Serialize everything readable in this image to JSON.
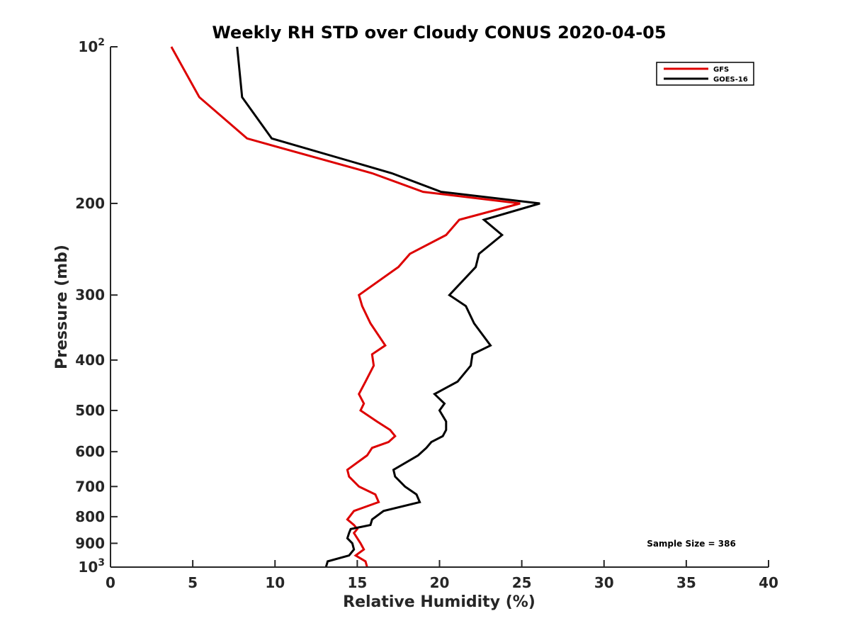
{
  "chart_data": {
    "type": "line",
    "title": "Weekly RH STD over Cloudy CONUS 2020-04-05",
    "xlabel": "Relative Humidity (%)",
    "ylabel": "Pressure (mb)",
    "xlim": [
      0,
      40
    ],
    "ylim": [
      100,
      1000
    ],
    "y_scale": "log",
    "y_reversed": true,
    "x_ticks": [
      "0",
      "5",
      "10",
      "15",
      "20",
      "25",
      "30",
      "35",
      "40"
    ],
    "y_ticks": [
      {
        "value": 100,
        "base": "10",
        "exp": "2"
      },
      {
        "value": 200,
        "label": "200"
      },
      {
        "value": 300,
        "label": "300"
      },
      {
        "value": 400,
        "label": "400"
      },
      {
        "value": 500,
        "label": "500"
      },
      {
        "value": 600,
        "label": "600"
      },
      {
        "value": 700,
        "label": "700"
      },
      {
        "value": 800,
        "label": "800"
      },
      {
        "value": 900,
        "label": "900"
      },
      {
        "value": 1000,
        "base": "10",
        "exp": "3"
      }
    ],
    "legend_position": "top-right",
    "grid": false,
    "annotation": "Sample Size = 386",
    "series": [
      {
        "name": "GFS",
        "color": "#dd0000",
        "points": [
          [
            3.7,
            100
          ],
          [
            5.4,
            125
          ],
          [
            8.3,
            150
          ],
          [
            15.9,
            175
          ],
          [
            19.0,
            190
          ],
          [
            24.9,
            200
          ],
          [
            21.2,
            215
          ],
          [
            20.4,
            230
          ],
          [
            18.2,
            250
          ],
          [
            17.5,
            265
          ],
          [
            15.1,
            300
          ],
          [
            15.3,
            315
          ],
          [
            15.8,
            340
          ],
          [
            16.7,
            375
          ],
          [
            15.9,
            390
          ],
          [
            16.0,
            410
          ],
          [
            15.5,
            440
          ],
          [
            15.1,
            465
          ],
          [
            15.4,
            485
          ],
          [
            15.2,
            500
          ],
          [
            16.2,
            525
          ],
          [
            17.0,
            545
          ],
          [
            17.3,
            560
          ],
          [
            16.9,
            575
          ],
          [
            15.9,
            590
          ],
          [
            15.6,
            610
          ],
          [
            14.4,
            650
          ],
          [
            14.5,
            670
          ],
          [
            15.1,
            700
          ],
          [
            16.1,
            725
          ],
          [
            16.3,
            750
          ],
          [
            14.8,
            780
          ],
          [
            14.4,
            810
          ],
          [
            14.8,
            830
          ],
          [
            15.0,
            845
          ],
          [
            14.8,
            860
          ],
          [
            15.0,
            880
          ],
          [
            15.2,
            900
          ],
          [
            15.4,
            925
          ],
          [
            14.9,
            950
          ],
          [
            15.5,
            975
          ],
          [
            15.6,
            1000
          ]
        ]
      },
      {
        "name": "GOES-16",
        "color": "#000000",
        "points": [
          [
            7.7,
            100
          ],
          [
            8.0,
            125
          ],
          [
            9.8,
            150
          ],
          [
            17.1,
            175
          ],
          [
            20.1,
            190
          ],
          [
            26.1,
            200
          ],
          [
            22.7,
            215
          ],
          [
            23.8,
            230
          ],
          [
            22.4,
            250
          ],
          [
            22.2,
            265
          ],
          [
            20.6,
            300
          ],
          [
            21.6,
            315
          ],
          [
            22.1,
            340
          ],
          [
            23.1,
            375
          ],
          [
            22.0,
            390
          ],
          [
            21.9,
            410
          ],
          [
            21.1,
            440
          ],
          [
            19.7,
            465
          ],
          [
            20.3,
            485
          ],
          [
            20.0,
            500
          ],
          [
            20.4,
            525
          ],
          [
            20.4,
            545
          ],
          [
            20.2,
            560
          ],
          [
            19.5,
            575
          ],
          [
            19.2,
            590
          ],
          [
            18.7,
            610
          ],
          [
            17.2,
            650
          ],
          [
            17.3,
            670
          ],
          [
            17.9,
            700
          ],
          [
            18.6,
            725
          ],
          [
            18.8,
            750
          ],
          [
            16.6,
            780
          ],
          [
            15.9,
            810
          ],
          [
            15.8,
            830
          ],
          [
            14.6,
            845
          ],
          [
            14.5,
            860
          ],
          [
            14.4,
            880
          ],
          [
            14.7,
            900
          ],
          [
            14.8,
            925
          ],
          [
            14.5,
            950
          ],
          [
            13.2,
            975
          ],
          [
            13.1,
            1000
          ]
        ]
      }
    ]
  }
}
